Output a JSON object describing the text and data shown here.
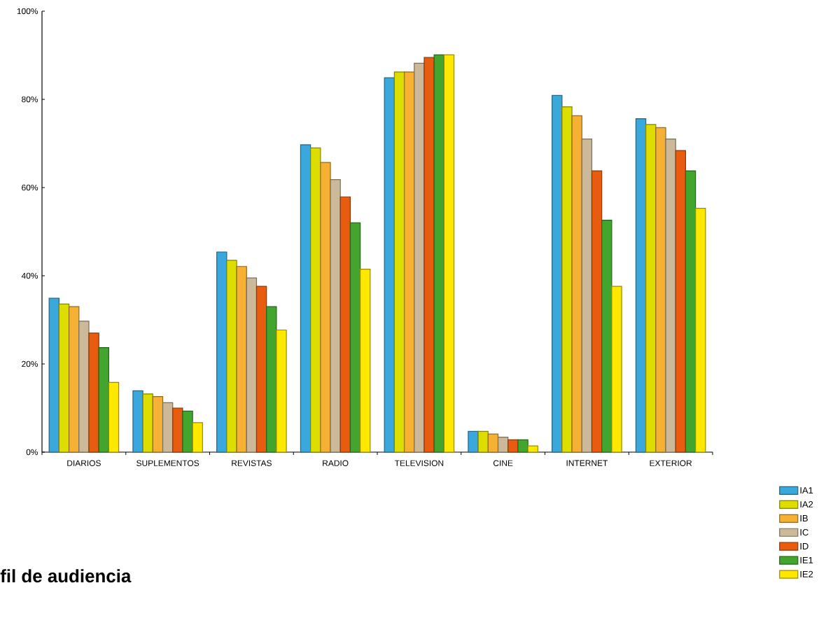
{
  "chart_data": {
    "type": "bar",
    "title": "fil de audiencia",
    "categories": [
      "DIARIOS",
      "SUPLEMENTOS",
      "REVISTAS",
      "RADIO",
      "TELEVISION",
      "CINE",
      "INTERNET",
      "EXTERIOR"
    ],
    "series": [
      {
        "name": "IA1",
        "color": "#3aa8dc",
        "values": [
          34.9,
          13.9,
          45.4,
          69.7,
          84.9,
          4.7,
          80.9,
          75.6
        ]
      },
      {
        "name": "IA2",
        "color": "#dddd00",
        "values": [
          33.6,
          13.2,
          43.5,
          69.0,
          86.2,
          4.7,
          78.3,
          74.3
        ]
      },
      {
        "name": "IB",
        "color": "#f6b034",
        "values": [
          33.0,
          12.6,
          42.1,
          65.7,
          86.2,
          4.1,
          76.3,
          73.6
        ]
      },
      {
        "name": "IC",
        "color": "#cbb999",
        "values": [
          29.7,
          11.2,
          39.5,
          61.8,
          88.2,
          3.4,
          71.0,
          71.0
        ]
      },
      {
        "name": "ID",
        "color": "#e85c10",
        "values": [
          27.0,
          10.0,
          37.6,
          57.9,
          89.5,
          2.8,
          63.8,
          68.4
        ]
      },
      {
        "name": "IE1",
        "color": "#42a52e",
        "values": [
          23.7,
          9.3,
          33.0,
          52.0,
          90.1,
          2.8,
          52.6,
          63.8
        ]
      },
      {
        "name": "IE2",
        "color": "#ffe800",
        "values": [
          15.8,
          6.7,
          27.7,
          41.5,
          90.1,
          1.4,
          37.6,
          55.3
        ]
      }
    ],
    "ylim": [
      0,
      100
    ],
    "yticks": [
      {
        "value": 0,
        "label": "0%"
      },
      {
        "value": 20,
        "label": "20%"
      },
      {
        "value": 40,
        "label": "40%"
      },
      {
        "value": 60,
        "label": "60%"
      },
      {
        "value": 80,
        "label": "80%"
      },
      {
        "value": 100,
        "label": "100%"
      }
    ],
    "grid": false,
    "legend": "bottom right"
  }
}
